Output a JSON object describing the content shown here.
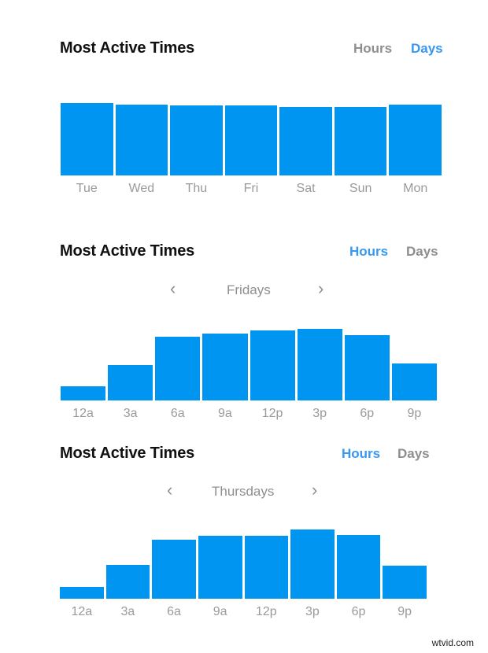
{
  "colors": {
    "bar": "#0095f0",
    "active_toggle": "#3897f0",
    "inactive": "#8e8e8e",
    "title": "#111111"
  },
  "panels": [
    {
      "title": "Most Active Times",
      "toggle": {
        "hours_label": "Hours",
        "days_label": "Days",
        "active": "Days"
      }
    },
    {
      "title": "Most Active Times",
      "toggle": {
        "hours_label": "Hours",
        "days_label": "Days",
        "active": "Hours"
      },
      "nav": {
        "prev_icon": "chevron-left",
        "label": "Fridays",
        "next_icon": "chevron-right"
      }
    },
    {
      "title": "Most Active Times",
      "toggle": {
        "hours_label": "Hours",
        "days_label": "Days",
        "active": "Hours"
      },
      "nav": {
        "prev_icon": "chevron-left",
        "label": "Thursdays",
        "next_icon": "chevron-right"
      }
    }
  ],
  "chart_data": [
    {
      "type": "bar",
      "title": "Most Active Times (Days)",
      "categories": [
        "Tue",
        "Wed",
        "Thu",
        "Fri",
        "Sat",
        "Sun",
        "Mon"
      ],
      "values": [
        92,
        90,
        89,
        89,
        87,
        87,
        90
      ],
      "xlabel": "",
      "ylabel": "",
      "ylim": [
        0,
        100
      ],
      "grid": false,
      "legend": "none"
    },
    {
      "type": "bar",
      "title": "Most Active Times (Hours) - Fridays",
      "categories": [
        "12a",
        "3a",
        "6a",
        "9a",
        "12p",
        "3p",
        "6p",
        "9p"
      ],
      "values": [
        18,
        45,
        81,
        85,
        89,
        91,
        83,
        47
      ],
      "xlabel": "",
      "ylabel": "",
      "ylim": [
        0,
        100
      ],
      "grid": false,
      "legend": "none"
    },
    {
      "type": "bar",
      "title": "Most Active Times (Hours) - Thursdays",
      "categories": [
        "12a",
        "3a",
        "6a",
        "9a",
        "12p",
        "3p",
        "6p",
        "9p"
      ],
      "values": [
        15,
        43,
        75,
        80,
        80,
        88,
        81,
        42
      ],
      "xlabel": "",
      "ylabel": "",
      "ylim": [
        0,
        100
      ],
      "grid": false,
      "legend": "none"
    }
  ],
  "watermark": "wtvid.com"
}
